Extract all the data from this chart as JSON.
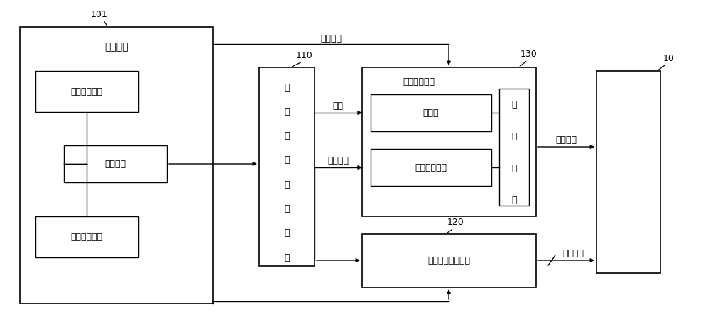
{
  "background_color": "#ffffff",
  "label_101": "101",
  "label_110": "110",
  "label_120": "120",
  "label_130": "130",
  "label_10": "10",
  "box_timing": "时序单元",
  "box_prev_frame": "前帧画面数据",
  "box_ctrl_sig": "控制信号",
  "box_curr_frame": "本帧画面数据",
  "box_v1gen_chars": [
    "第",
    "一",
    "电",
    "压",
    "产",
    "生",
    "单",
    "元"
  ],
  "box_vadj": "电压调节单元",
  "box_std": "标准值",
  "box_tolerance": "容许电压范围",
  "box_ref_v_chars": [
    "基",
    "准",
    "电",
    "压"
  ],
  "box_v2gen": "第二电压产生单元",
  "arrow_ctrl_label": "控制信号",
  "arrow_ground_label": "接地",
  "arrow_v1_label": "第一电压",
  "arrow_ref_v_label": "基准电压",
  "arrow_v2_label": "第二电压",
  "font_size_label": 9,
  "font_size_box": 9,
  "font_size_small": 8,
  "line_width": 1.0
}
